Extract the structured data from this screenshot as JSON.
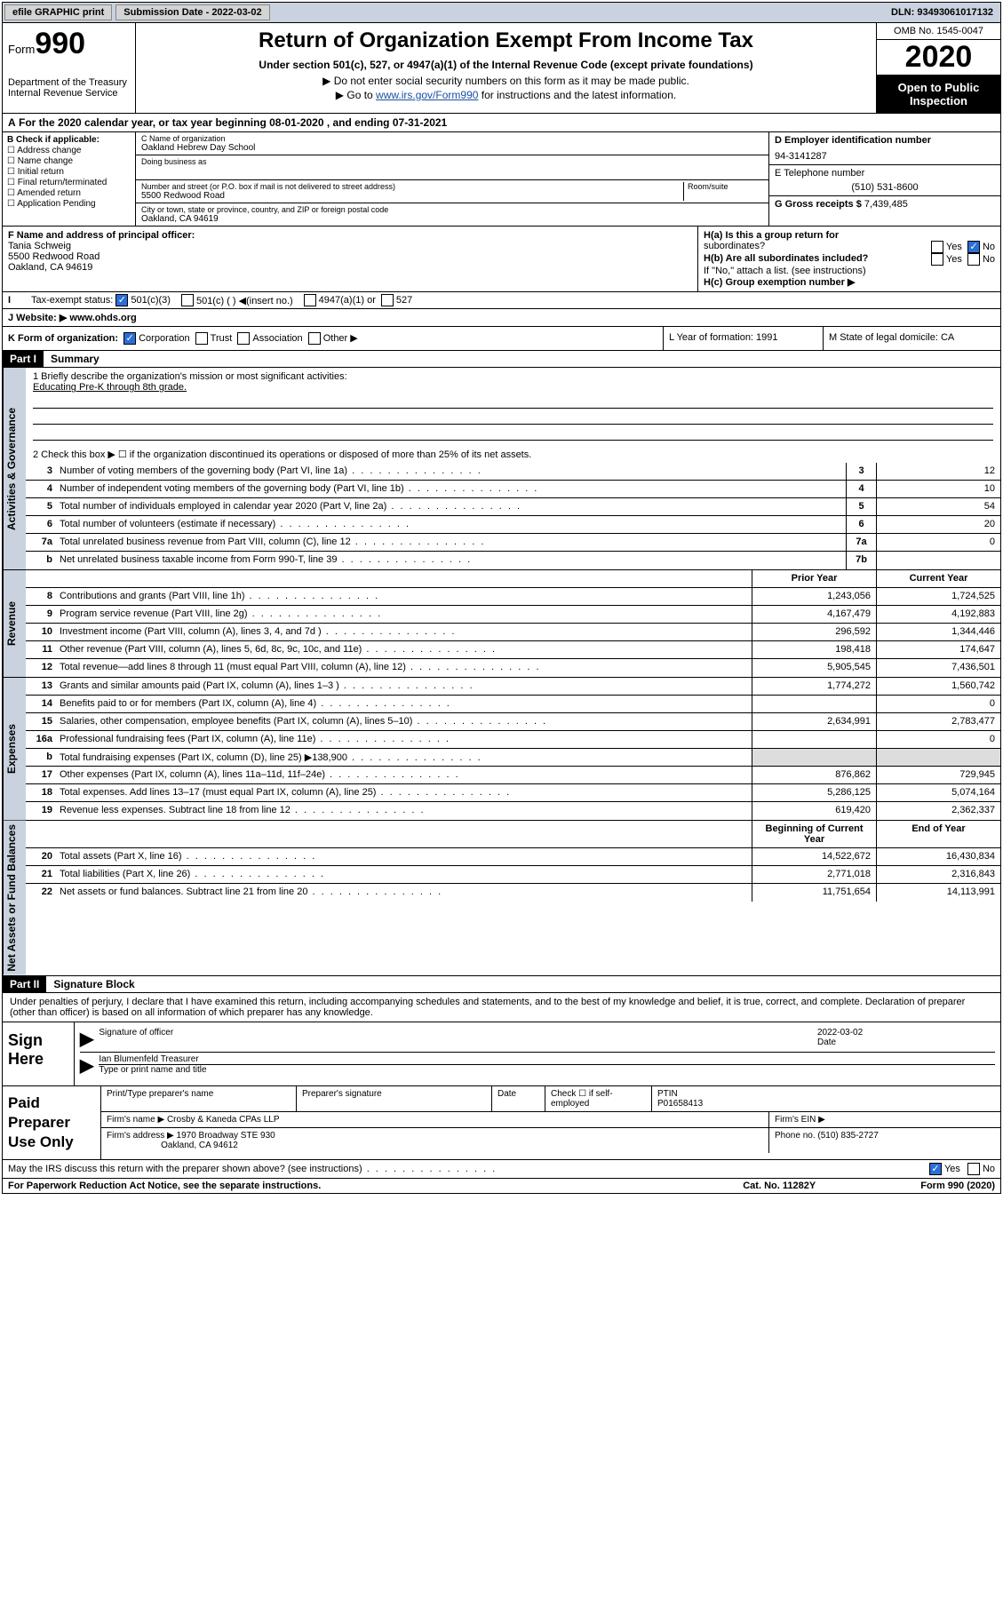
{
  "topbar": {
    "efile": "efile GRAPHIC print",
    "submission_label": "Submission Date - 2022-03-02",
    "dln": "DLN: 93493061017132"
  },
  "header": {
    "form_word": "Form",
    "form_num": "990",
    "dept": "Department of the Treasury Internal Revenue Service",
    "title": "Return of Organization Exempt From Income Tax",
    "subtitle": "Under section 501(c), 527, or 4947(a)(1) of the Internal Revenue Code (except private foundations)",
    "note1": "▶ Do not enter social security numbers on this form as it may be made public.",
    "note2_pre": "▶ Go to ",
    "note2_link": "www.irs.gov/Form990",
    "note2_post": " for instructions and the latest information.",
    "omb": "OMB No. 1545-0047",
    "year": "2020",
    "opi": "Open to Public Inspection"
  },
  "period": "For the 2020 calendar year, or tax year beginning 08-01-2020    , and ending 07-31-2021",
  "sectionB": {
    "label": "B Check if applicable:",
    "items": [
      "Address change",
      "Name change",
      "Initial return",
      "Final return/terminated",
      "Amended return",
      "Application Pending"
    ]
  },
  "sectionC": {
    "name_label": "C Name of organization",
    "name": "Oakland Hebrew Day School",
    "dba_label": "Doing business as",
    "addr_label": "Number and street (or P.O. box if mail is not delivered to street address)",
    "room_label": "Room/suite",
    "addr": "5500 Redwood Road",
    "city_label": "City or town, state or province, country, and ZIP or foreign postal code",
    "city": "Oakland, CA  94619"
  },
  "sectionD": {
    "ein_label": "D Employer identification number",
    "ein": "94-3141287",
    "phone_label": "E Telephone number",
    "phone": "(510) 531-8600",
    "gross_label": "G Gross receipts $",
    "gross": "7,439,485"
  },
  "sectionF": {
    "label": "F  Name and address of principal officer:",
    "name": "Tania Schweig",
    "addr1": "5500 Redwood Road",
    "addr2": "Oakland, CA  94619"
  },
  "sectionH": {
    "a_label": "H(a)  Is this a group return for",
    "a_sub": "subordinates?",
    "b_label": "H(b)  Are all subordinates included?",
    "b_note": "If \"No,\" attach a list. (see instructions)",
    "c_label": "H(c)  Group exemption number ▶"
  },
  "taxexempt": {
    "label": "Tax-exempt status:",
    "o501c3": "501(c)(3)",
    "o501c": "501(c) (  ) ◀(insert no.)",
    "o4947": "4947(a)(1) or",
    "o527": "527"
  },
  "website": {
    "label": "J    Website: ▶",
    "value": "www.ohds.org"
  },
  "sectionK": {
    "label": "K Form of organization:",
    "corp": "Corporation",
    "trust": "Trust",
    "assoc": "Association",
    "other": "Other ▶",
    "L": "L Year of formation: 1991",
    "M": "M State of legal domicile: CA"
  },
  "part1": {
    "hdr": "Part I",
    "title": "Summary"
  },
  "summary": {
    "l1_label": "1   Briefly describe the organization's mission or most significant activities:",
    "l1_text": "Educating Pre-K through 8th grade.",
    "l2": "2   Check this box ▶ ☐  if the organization discontinued its operations or disposed of more than 25% of its net assets.",
    "rows_ag": [
      {
        "n": "3",
        "t": "Number of voting members of the governing body (Part VI, line 1a)",
        "b": "3",
        "v": "12"
      },
      {
        "n": "4",
        "t": "Number of independent voting members of the governing body (Part VI, line 1b)",
        "b": "4",
        "v": "10"
      },
      {
        "n": "5",
        "t": "Total number of individuals employed in calendar year 2020 (Part V, line 2a)",
        "b": "5",
        "v": "54"
      },
      {
        "n": "6",
        "t": "Total number of volunteers (estimate if necessary)",
        "b": "6",
        "v": "20"
      },
      {
        "n": "7a",
        "t": "Total unrelated business revenue from Part VIII, column (C), line 12",
        "b": "7a",
        "v": "0"
      },
      {
        "n": "b",
        "t": "Net unrelated business taxable income from Form 990-T, line 39",
        "b": "7b",
        "v": ""
      }
    ],
    "col_prior": "Prior Year",
    "col_current": "Current Year",
    "rev": [
      {
        "n": "8",
        "t": "Contributions and grants (Part VIII, line 1h)",
        "p": "1,243,056",
        "c": "1,724,525"
      },
      {
        "n": "9",
        "t": "Program service revenue (Part VIII, line 2g)",
        "p": "4,167,479",
        "c": "4,192,883"
      },
      {
        "n": "10",
        "t": "Investment income (Part VIII, column (A), lines 3, 4, and 7d )",
        "p": "296,592",
        "c": "1,344,446"
      },
      {
        "n": "11",
        "t": "Other revenue (Part VIII, column (A), lines 5, 6d, 8c, 9c, 10c, and 11e)",
        "p": "198,418",
        "c": "174,647"
      },
      {
        "n": "12",
        "t": "Total revenue—add lines 8 through 11 (must equal Part VIII, column (A), line 12)",
        "p": "5,905,545",
        "c": "7,436,501"
      }
    ],
    "exp": [
      {
        "n": "13",
        "t": "Grants and similar amounts paid (Part IX, column (A), lines 1–3 )",
        "p": "1,774,272",
        "c": "1,560,742"
      },
      {
        "n": "14",
        "t": "Benefits paid to or for members (Part IX, column (A), line 4)",
        "p": "",
        "c": "0"
      },
      {
        "n": "15",
        "t": "Salaries, other compensation, employee benefits (Part IX, column (A), lines 5–10)",
        "p": "2,634,991",
        "c": "2,783,477"
      },
      {
        "n": "16a",
        "t": "Professional fundraising fees (Part IX, column (A), line 11e)",
        "p": "",
        "c": "0"
      },
      {
        "n": "b",
        "t": "Total fundraising expenses (Part IX, column (D), line 25) ▶138,900",
        "p": "shade",
        "c": "shade"
      },
      {
        "n": "17",
        "t": "Other expenses (Part IX, column (A), lines 11a–11d, 11f–24e)",
        "p": "876,862",
        "c": "729,945"
      },
      {
        "n": "18",
        "t": "Total expenses. Add lines 13–17 (must equal Part IX, column (A), line 25)",
        "p": "5,286,125",
        "c": "5,074,164"
      },
      {
        "n": "19",
        "t": "Revenue less expenses. Subtract line 18 from line 12",
        "p": "619,420",
        "c": "2,362,337"
      }
    ],
    "col_boy": "Beginning of Current Year",
    "col_eoy": "End of Year",
    "na": [
      {
        "n": "20",
        "t": "Total assets (Part X, line 16)",
        "p": "14,522,672",
        "c": "16,430,834"
      },
      {
        "n": "21",
        "t": "Total liabilities (Part X, line 26)",
        "p": "2,771,018",
        "c": "2,316,843"
      },
      {
        "n": "22",
        "t": "Net assets or fund balances. Subtract line 21 from line 20",
        "p": "11,751,654",
        "c": "14,113,991"
      }
    ]
  },
  "vtabs": {
    "ag": "Activities & Governance",
    "rev": "Revenue",
    "exp": "Expenses",
    "na": "Net Assets or Fund Balances"
  },
  "part2": {
    "hdr": "Part II",
    "title": "Signature Block"
  },
  "perjury": "Under penalties of perjury, I declare that I have examined this return, including accompanying schedules and statements, and to the best of my knowledge and belief, it is true, correct, and complete. Declaration of preparer (other than officer) is based on all information of which preparer has any knowledge.",
  "sign": {
    "here": "Sign Here",
    "sig_lab": "Signature of officer",
    "date_lab": "Date",
    "date": "2022-03-02",
    "name": "Ian Blumenfeld  Treasurer",
    "name_lab": "Type or print name and title"
  },
  "prep": {
    "label": "Paid Preparer Use Only",
    "h1": "Print/Type preparer's name",
    "h2": "Preparer's signature",
    "h3": "Date",
    "h4": "Check ☐ if self-employed",
    "h5_lab": "PTIN",
    "h5": "P01658413",
    "firm_lab": "Firm's name    ▶",
    "firm": "Crosby & Kaneda CPAs LLP",
    "ein_lab": "Firm's EIN ▶",
    "addr_lab": "Firm's address ▶",
    "addr1": "1970 Broadway STE 930",
    "addr2": "Oakland, CA  94612",
    "phone_lab": "Phone no.",
    "phone": "(510) 835-2727"
  },
  "discuss": "May the IRS discuss this return with the preparer shown above? (see instructions)",
  "footer": {
    "pra": "For Paperwork Reduction Act Notice, see the separate instructions.",
    "cat": "Cat. No. 11282Y",
    "form": "Form 990 (2020)"
  },
  "yes": "Yes",
  "no": "No"
}
